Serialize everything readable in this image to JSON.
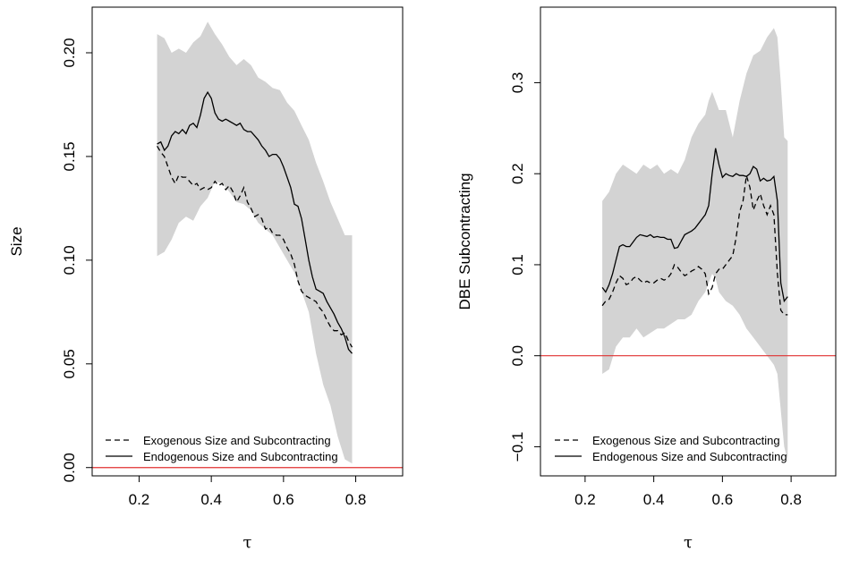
{
  "chart_data": [
    {
      "type": "line",
      "title": "",
      "xlabel": "τ",
      "ylabel": "Size",
      "xlim": [
        0.07,
        0.93
      ],
      "ylim": [
        -0.004,
        0.222
      ],
      "xticks": [
        0.2,
        0.4,
        0.6,
        0.8
      ],
      "xtick_labels": [
        "0.2",
        "0.4",
        "0.6",
        "0.8"
      ],
      "yticks": [
        0.0,
        0.05,
        0.1,
        0.15,
        0.2
      ],
      "ytick_labels": [
        "0.00",
        "0.05",
        "0.10",
        "0.15",
        "0.20"
      ],
      "grid": false,
      "legend_position": "bottom-left",
      "reference_line": {
        "y": 0,
        "color": "#e03030"
      },
      "band": {
        "fill": "#d3d3d3",
        "x": [
          0.25,
          0.27,
          0.29,
          0.31,
          0.33,
          0.35,
          0.37,
          0.39,
          0.41,
          0.43,
          0.45,
          0.47,
          0.49,
          0.51,
          0.53,
          0.55,
          0.57,
          0.59,
          0.61,
          0.63,
          0.65,
          0.67,
          0.69,
          0.71,
          0.73,
          0.75,
          0.77,
          0.79
        ],
        "upper": [
          0.209,
          0.207,
          0.2,
          0.202,
          0.2,
          0.205,
          0.208,
          0.215,
          0.209,
          0.204,
          0.198,
          0.194,
          0.197,
          0.194,
          0.188,
          0.186,
          0.183,
          0.182,
          0.176,
          0.172,
          0.165,
          0.158,
          0.147,
          0.138,
          0.128,
          0.12,
          0.112,
          0.112
        ],
        "lower": [
          0.102,
          0.104,
          0.11,
          0.118,
          0.121,
          0.119,
          0.126,
          0.13,
          0.138,
          0.137,
          0.133,
          0.128,
          0.127,
          0.124,
          0.118,
          0.115,
          0.112,
          0.106,
          0.1,
          0.094,
          0.085,
          0.075,
          0.055,
          0.04,
          0.03,
          0.015,
          0.004,
          0.002
        ]
      },
      "series": [
        {
          "name": "Exogenous Size and Subcontracting",
          "dash": "dashed",
          "color": "#000000",
          "x": [
            0.25,
            0.26,
            0.27,
            0.28,
            0.29,
            0.3,
            0.31,
            0.32,
            0.33,
            0.34,
            0.35,
            0.36,
            0.37,
            0.38,
            0.39,
            0.4,
            0.41,
            0.42,
            0.43,
            0.44,
            0.45,
            0.46,
            0.47,
            0.48,
            0.49,
            0.5,
            0.51,
            0.52,
            0.53,
            0.54,
            0.55,
            0.56,
            0.57,
            0.58,
            0.59,
            0.6,
            0.61,
            0.62,
            0.63,
            0.64,
            0.65,
            0.66,
            0.67,
            0.68,
            0.69,
            0.7,
            0.71,
            0.72,
            0.73,
            0.74,
            0.75,
            0.76,
            0.77,
            0.78,
            0.79
          ],
          "values": [
            0.155,
            0.152,
            0.15,
            0.145,
            0.14,
            0.137,
            0.141,
            0.14,
            0.14,
            0.138,
            0.136,
            0.137,
            0.134,
            0.135,
            0.134,
            0.135,
            0.138,
            0.136,
            0.137,
            0.134,
            0.136,
            0.133,
            0.128,
            0.131,
            0.135,
            0.128,
            0.125,
            0.121,
            0.122,
            0.12,
            0.115,
            0.116,
            0.113,
            0.112,
            0.112,
            0.11,
            0.106,
            0.103,
            0.098,
            0.09,
            0.085,
            0.083,
            0.082,
            0.081,
            0.08,
            0.077,
            0.075,
            0.071,
            0.068,
            0.066,
            0.066,
            0.064,
            0.065,
            0.061,
            0.058
          ]
        },
        {
          "name": "Endogenous Size and Subcontracting",
          "dash": "solid",
          "color": "#000000",
          "x": [
            0.25,
            0.26,
            0.27,
            0.28,
            0.29,
            0.3,
            0.31,
            0.32,
            0.33,
            0.34,
            0.35,
            0.36,
            0.37,
            0.38,
            0.39,
            0.4,
            0.41,
            0.42,
            0.43,
            0.44,
            0.45,
            0.46,
            0.47,
            0.48,
            0.49,
            0.5,
            0.51,
            0.52,
            0.53,
            0.54,
            0.55,
            0.56,
            0.57,
            0.58,
            0.59,
            0.6,
            0.61,
            0.62,
            0.63,
            0.64,
            0.65,
            0.66,
            0.67,
            0.68,
            0.69,
            0.7,
            0.71,
            0.72,
            0.73,
            0.74,
            0.75,
            0.76,
            0.77,
            0.78,
            0.79
          ],
          "values": [
            0.156,
            0.157,
            0.153,
            0.155,
            0.16,
            0.162,
            0.161,
            0.163,
            0.161,
            0.165,
            0.166,
            0.164,
            0.17,
            0.178,
            0.181,
            0.178,
            0.171,
            0.168,
            0.167,
            0.168,
            0.167,
            0.166,
            0.165,
            0.166,
            0.163,
            0.162,
            0.162,
            0.16,
            0.158,
            0.155,
            0.153,
            0.15,
            0.151,
            0.151,
            0.149,
            0.145,
            0.14,
            0.135,
            0.127,
            0.126,
            0.12,
            0.11,
            0.1,
            0.092,
            0.086,
            0.085,
            0.084,
            0.08,
            0.077,
            0.074,
            0.07,
            0.067,
            0.063,
            0.057,
            0.055
          ]
        }
      ]
    },
    {
      "type": "line",
      "title": "",
      "xlabel": "τ",
      "ylabel": "DBE Subcontracting",
      "xlim": [
        0.07,
        0.93
      ],
      "ylim": [
        -0.132,
        0.383
      ],
      "xticks": [
        0.2,
        0.4,
        0.6,
        0.8
      ],
      "xtick_labels": [
        "0.2",
        "0.4",
        "0.6",
        "0.8"
      ],
      "yticks": [
        -0.1,
        0.0,
        0.1,
        0.2,
        0.3
      ],
      "ytick_labels": [
        "−0.1",
        "0.0",
        "0.1",
        "0.2",
        "0.3"
      ],
      "grid": false,
      "legend_position": "bottom-left",
      "reference_line": {
        "y": 0,
        "color": "#e03030"
      },
      "band": {
        "fill": "#d3d3d3",
        "x": [
          0.25,
          0.27,
          0.29,
          0.31,
          0.33,
          0.35,
          0.37,
          0.39,
          0.41,
          0.43,
          0.45,
          0.47,
          0.49,
          0.51,
          0.53,
          0.55,
          0.56,
          0.57,
          0.58,
          0.59,
          0.61,
          0.63,
          0.65,
          0.67,
          0.69,
          0.71,
          0.73,
          0.75,
          0.76,
          0.77,
          0.78,
          0.79
        ],
        "upper": [
          0.17,
          0.18,
          0.2,
          0.21,
          0.205,
          0.2,
          0.21,
          0.205,
          0.21,
          0.2,
          0.205,
          0.2,
          0.215,
          0.24,
          0.255,
          0.265,
          0.28,
          0.29,
          0.28,
          0.27,
          0.27,
          0.24,
          0.28,
          0.31,
          0.33,
          0.335,
          0.35,
          0.36,
          0.35,
          0.3,
          0.24,
          0.236
        ],
        "lower": [
          -0.02,
          -0.015,
          0.01,
          0.02,
          0.02,
          0.03,
          0.02,
          0.025,
          0.03,
          0.03,
          0.035,
          0.04,
          0.04,
          0.045,
          0.06,
          0.07,
          0.08,
          0.09,
          0.085,
          0.07,
          0.06,
          0.055,
          0.045,
          0.03,
          0.02,
          0.01,
          0.0,
          -0.01,
          -0.02,
          -0.06,
          -0.1,
          -0.115
        ]
      },
      "series": [
        {
          "name": "Exogenous Size and Subcontracting",
          "dash": "dashed",
          "color": "#000000",
          "x": [
            0.25,
            0.26,
            0.27,
            0.28,
            0.29,
            0.3,
            0.31,
            0.32,
            0.33,
            0.34,
            0.35,
            0.36,
            0.37,
            0.38,
            0.39,
            0.4,
            0.41,
            0.42,
            0.43,
            0.44,
            0.45,
            0.46,
            0.47,
            0.48,
            0.49,
            0.5,
            0.51,
            0.52,
            0.53,
            0.54,
            0.55,
            0.56,
            0.57,
            0.58,
            0.59,
            0.6,
            0.61,
            0.62,
            0.63,
            0.64,
            0.65,
            0.66,
            0.67,
            0.68,
            0.69,
            0.7,
            0.71,
            0.72,
            0.73,
            0.74,
            0.75,
            0.76,
            0.77,
            0.78,
            0.79
          ],
          "values": [
            0.055,
            0.06,
            0.062,
            0.07,
            0.08,
            0.088,
            0.085,
            0.078,
            0.08,
            0.085,
            0.087,
            0.083,
            0.08,
            0.082,
            0.08,
            0.08,
            0.083,
            0.085,
            0.083,
            0.085,
            0.09,
            0.1,
            0.097,
            0.092,
            0.088,
            0.09,
            0.093,
            0.095,
            0.098,
            0.095,
            0.09,
            0.068,
            0.075,
            0.09,
            0.095,
            0.095,
            0.1,
            0.105,
            0.11,
            0.13,
            0.158,
            0.17,
            0.198,
            0.185,
            0.16,
            0.17,
            0.178,
            0.165,
            0.155,
            0.165,
            0.155,
            0.09,
            0.05,
            0.045,
            0.045
          ]
        },
        {
          "name": "Endogenous Size and Subcontracting",
          "dash": "solid",
          "color": "#000000",
          "x": [
            0.25,
            0.26,
            0.27,
            0.28,
            0.29,
            0.3,
            0.31,
            0.32,
            0.33,
            0.34,
            0.35,
            0.36,
            0.37,
            0.38,
            0.39,
            0.4,
            0.41,
            0.42,
            0.43,
            0.44,
            0.45,
            0.46,
            0.47,
            0.48,
            0.49,
            0.5,
            0.51,
            0.52,
            0.53,
            0.54,
            0.55,
            0.56,
            0.57,
            0.58,
            0.59,
            0.6,
            0.61,
            0.62,
            0.63,
            0.64,
            0.65,
            0.66,
            0.67,
            0.68,
            0.69,
            0.7,
            0.71,
            0.72,
            0.73,
            0.74,
            0.75,
            0.76,
            0.77,
            0.78,
            0.79
          ],
          "values": [
            0.075,
            0.07,
            0.078,
            0.09,
            0.105,
            0.12,
            0.122,
            0.12,
            0.12,
            0.125,
            0.13,
            0.133,
            0.132,
            0.131,
            0.133,
            0.13,
            0.131,
            0.13,
            0.13,
            0.128,
            0.128,
            0.118,
            0.119,
            0.126,
            0.133,
            0.135,
            0.137,
            0.14,
            0.145,
            0.15,
            0.155,
            0.165,
            0.2,
            0.228,
            0.21,
            0.196,
            0.2,
            0.198,
            0.197,
            0.2,
            0.198,
            0.198,
            0.197,
            0.2,
            0.208,
            0.205,
            0.192,
            0.195,
            0.192,
            0.193,
            0.197,
            0.17,
            0.08,
            0.06,
            0.065
          ]
        }
      ]
    }
  ]
}
